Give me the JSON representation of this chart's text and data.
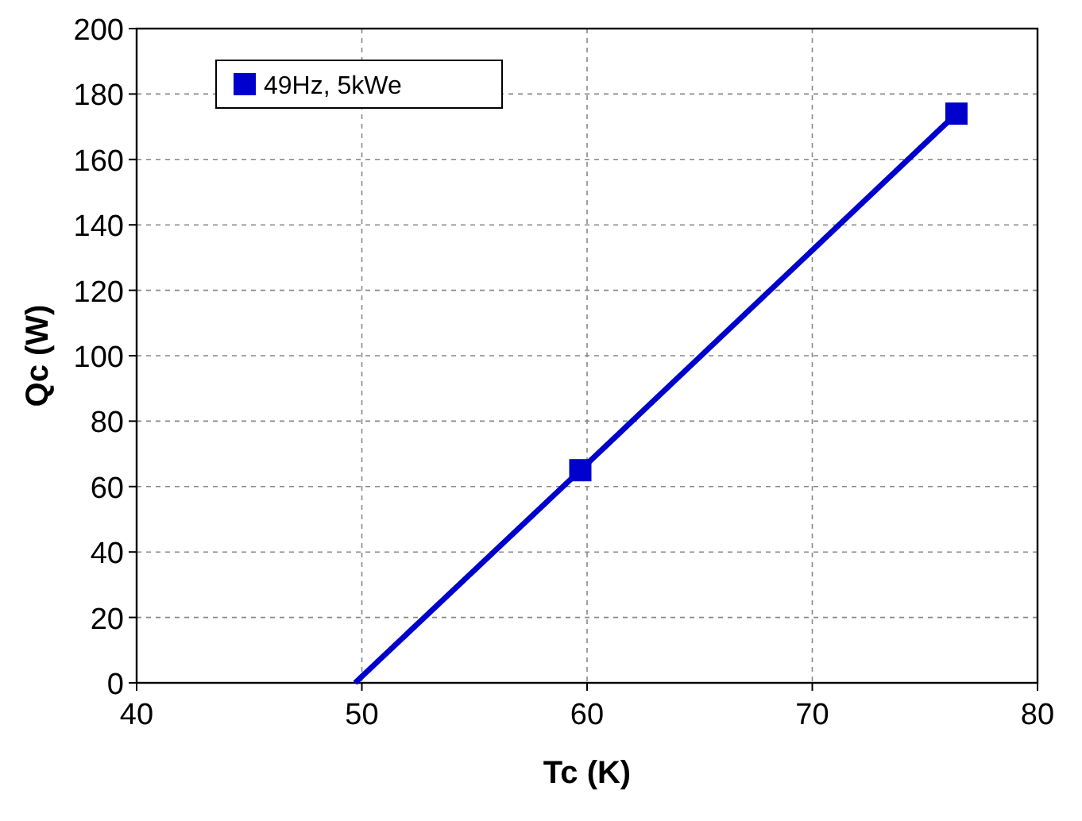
{
  "chart_data": {
    "type": "line",
    "xlabel": "Tc (K)",
    "ylabel": "Qc (W)",
    "xlim": [
      40,
      80
    ],
    "xticks": [
      40,
      50,
      60,
      70,
      80
    ],
    "ylim": [
      0,
      200
    ],
    "yticks": [
      0,
      20,
      40,
      60,
      80,
      100,
      120,
      140,
      160,
      180,
      200
    ],
    "grid": true,
    "legend": "top left",
    "line_style": "solid",
    "series": [
      {
        "name": "49Hz, 5kWe",
        "color": "#0000cc",
        "marker": "square",
        "x": [
          59.7,
          76.4
        ],
        "values": [
          65,
          174
        ]
      },
      {
        "color": "#0000cc",
        "marker": "none",
        "x": [
          49.7,
          59.7
        ],
        "values": [
          0,
          65
        ]
      }
    ]
  }
}
